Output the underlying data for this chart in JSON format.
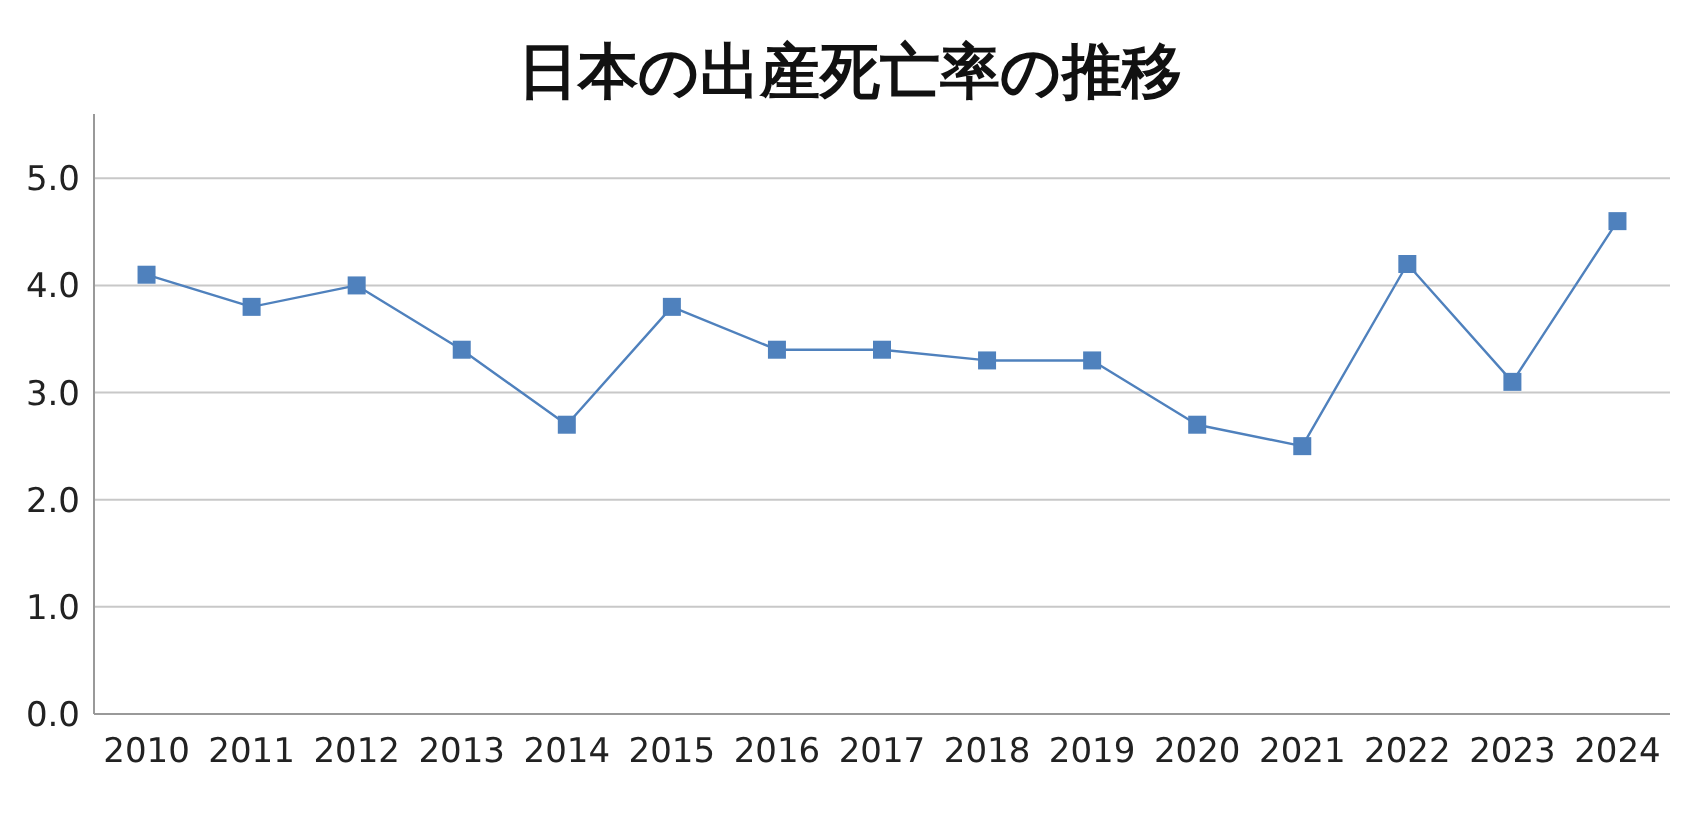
{
  "chart_data": {
    "type": "line",
    "title": "日本の出産死亡率の推移",
    "categories": [
      "2010",
      "2011",
      "2012",
      "2013",
      "2014",
      "2015",
      "2016",
      "2017",
      "2018",
      "2019",
      "2020",
      "2021",
      "2022",
      "2023",
      "2024"
    ],
    "series": [
      {
        "color": "#4f81bd",
        "values": [
          4.1,
          3.8,
          4.0,
          3.4,
          2.7,
          3.8,
          3.4,
          3.4,
          3.3,
          3.3,
          2.7,
          2.5,
          4.2,
          3.1,
          4.6
        ]
      }
    ],
    "ylim": [
      0,
      5.6
    ],
    "yticks": [
      {
        "value": 0,
        "label": "0.0"
      },
      {
        "value": 1,
        "label": "1.0"
      },
      {
        "value": 2,
        "label": "2.0"
      },
      {
        "value": 3,
        "label": "3.0"
      },
      {
        "value": 4,
        "label": "4.0"
      },
      {
        "value": 5,
        "label": "5.0"
      }
    ],
    "grid": "y",
    "marker": "square",
    "line_style": "solid"
  }
}
